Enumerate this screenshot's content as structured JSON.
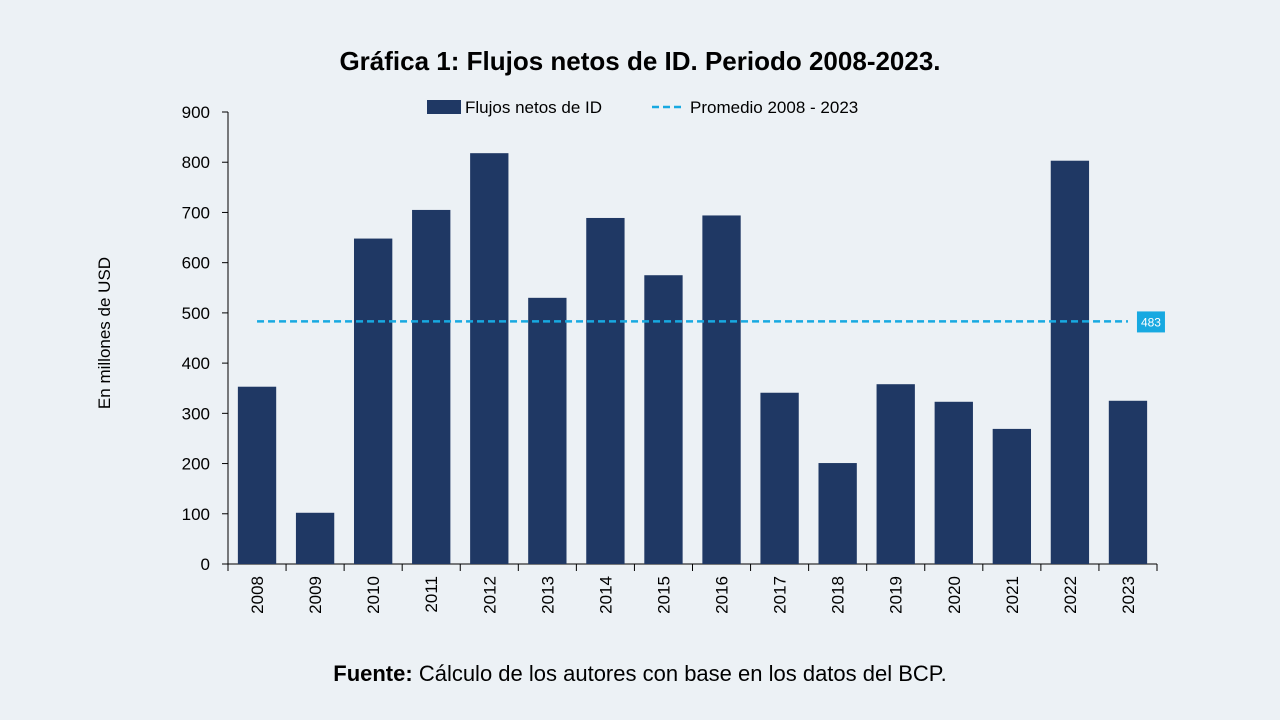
{
  "chart_data": {
    "type": "bar",
    "title": "Gráfica 1: Flujos netos de ID. Periodo 2008-2023.",
    "ylabel": "En millones de USD",
    "xlabel": "",
    "categories": [
      "2008",
      "2009",
      "2010",
      "2011",
      "2012",
      "2013",
      "2014",
      "2015",
      "2016",
      "2017",
      "2018",
      "2019",
      "2020",
      "2021",
      "2022",
      "2023"
    ],
    "series": [
      {
        "name": "Flujos netos de ID",
        "type": "bar",
        "color": "#1f3864",
        "values": [
          353,
          102,
          648,
          705,
          818,
          530,
          689,
          575,
          694,
          341,
          201,
          358,
          323,
          269,
          803,
          325
        ]
      },
      {
        "name": "Promedio 2008 - 2023",
        "type": "line",
        "style": "dashed",
        "color": "#17a9e1",
        "value": 483,
        "label": "483"
      }
    ],
    "ylim": [
      0,
      900
    ],
    "yticks": [
      "0",
      "100",
      "200",
      "300",
      "400",
      "500",
      "600",
      "700",
      "800",
      "900"
    ],
    "grid": false,
    "legend_position": "top-center"
  },
  "footer": {
    "source_label": "Fuente:",
    "source_text": " Cálculo de los autores con base en los datos del BCP."
  }
}
